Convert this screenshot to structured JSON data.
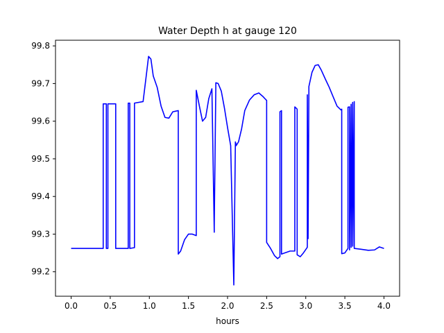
{
  "chart_data": {
    "type": "line",
    "title": "Water Depth h at gauge 120",
    "xlabel": "hours",
    "ylabel": "",
    "xlim": [
      -0.2,
      4.2
    ],
    "ylim": [
      99.135,
      99.815
    ],
    "x_ticks": [
      0.0,
      0.5,
      1.0,
      1.5,
      2.0,
      2.5,
      3.0,
      3.5,
      4.0
    ],
    "x_tick_labels": [
      "0.0",
      "0.5",
      "1.0",
      "1.5",
      "2.0",
      "2.5",
      "3.0",
      "3.5",
      "4.0"
    ],
    "y_ticks": [
      99.2,
      99.3,
      99.4,
      99.5,
      99.6,
      99.7,
      99.8
    ],
    "y_tick_labels": [
      "99.2",
      "99.3",
      "99.4",
      "99.5",
      "99.6",
      "99.7",
      "99.8"
    ],
    "grid": false,
    "series": [
      {
        "color": "#0000ff",
        "x": [
          0.0,
          0.41,
          0.41,
          0.45,
          0.45,
          0.47,
          0.47,
          0.57,
          0.57,
          0.73,
          0.73,
          0.75,
          0.75,
          0.81,
          0.81,
          0.92,
          0.96,
          0.99,
          1.02,
          1.05,
          1.1,
          1.15,
          1.2,
          1.25,
          1.3,
          1.37,
          1.37,
          1.4,
          1.45,
          1.5,
          1.55,
          1.6,
          1.6,
          1.64,
          1.68,
          1.72,
          1.76,
          1.8,
          1.83,
          1.83,
          1.85,
          1.85,
          1.88,
          1.92,
          1.96,
          2.0,
          2.04,
          2.08,
          2.1,
          2.1,
          2.11,
          2.11,
          2.14,
          2.18,
          2.22,
          2.28,
          2.34,
          2.4,
          2.45,
          2.5,
          2.5,
          2.55,
          2.6,
          2.64,
          2.67,
          2.67,
          2.69,
          2.69,
          2.73,
          2.8,
          2.86,
          2.86,
          2.89,
          2.89,
          2.93,
          2.97,
          3.02,
          3.02,
          3.03,
          3.03,
          3.04,
          3.04,
          3.08,
          3.12,
          3.16,
          3.2,
          3.25,
          3.3,
          3.35,
          3.4,
          3.45,
          3.46,
          3.46,
          3.5,
          3.54,
          3.54,
          3.56,
          3.56,
          3.58,
          3.58,
          3.6,
          3.6,
          3.62,
          3.62,
          3.7,
          3.8,
          3.88,
          3.94,
          4.0
        ],
        "y": [
          99.262,
          99.262,
          99.646,
          99.646,
          99.262,
          99.262,
          99.646,
          99.646,
          99.262,
          99.262,
          99.648,
          99.648,
          99.262,
          99.264,
          99.648,
          99.652,
          99.72,
          99.772,
          99.765,
          99.72,
          99.69,
          99.64,
          99.61,
          99.608,
          99.625,
          99.628,
          99.247,
          99.255,
          99.285,
          99.3,
          99.3,
          99.296,
          99.682,
          99.64,
          99.6,
          99.61,
          99.66,
          99.686,
          99.305,
          99.32,
          99.69,
          99.702,
          99.7,
          99.68,
          99.635,
          99.583,
          99.535,
          99.165,
          99.54,
          99.545,
          99.538,
          99.535,
          99.545,
          99.58,
          99.628,
          99.656,
          99.67,
          99.675,
          99.666,
          99.655,
          99.278,
          99.262,
          99.243,
          99.235,
          99.24,
          99.625,
          99.628,
          99.247,
          99.25,
          99.255,
          99.255,
          99.638,
          99.632,
          99.245,
          99.24,
          99.25,
          99.265,
          99.67,
          99.29,
          99.288,
          99.675,
          99.692,
          99.73,
          99.748,
          99.75,
          99.735,
          99.712,
          99.69,
          99.665,
          99.64,
          99.63,
          99.632,
          99.248,
          99.25,
          99.262,
          99.637,
          99.638,
          99.258,
          99.645,
          99.265,
          99.65,
          99.268,
          99.652,
          99.262,
          99.26,
          99.257,
          99.258,
          99.266,
          99.262
        ]
      }
    ]
  }
}
